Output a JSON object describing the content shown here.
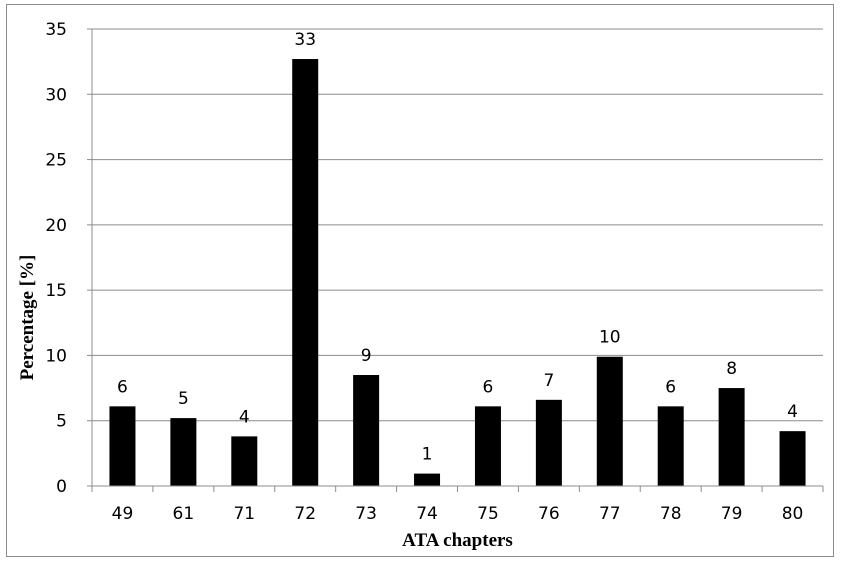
{
  "chart_data": {
    "type": "bar",
    "categories": [
      "49",
      "61",
      "71",
      "72",
      "73",
      "74",
      "75",
      "76",
      "77",
      "78",
      "79",
      "80"
    ],
    "values": [
      6.1,
      5.2,
      3.8,
      32.7,
      8.5,
      0.95,
      6.1,
      6.6,
      9.9,
      6.1,
      7.5,
      4.2
    ],
    "data_labels": [
      "6",
      "5",
      "4",
      "33",
      "9",
      "1",
      "6",
      "7",
      "10",
      "6",
      "8",
      "4"
    ],
    "title": "",
    "xlabel": "ATA chapters",
    "ylabel": "Percentage [%]",
    "ylim": [
      0,
      35
    ],
    "yticks": [
      0,
      5,
      10,
      15,
      20,
      25,
      30,
      35
    ],
    "grid": true,
    "legend": "none",
    "bar_color": "#000000",
    "grid_color": "#8c8c8c"
  }
}
